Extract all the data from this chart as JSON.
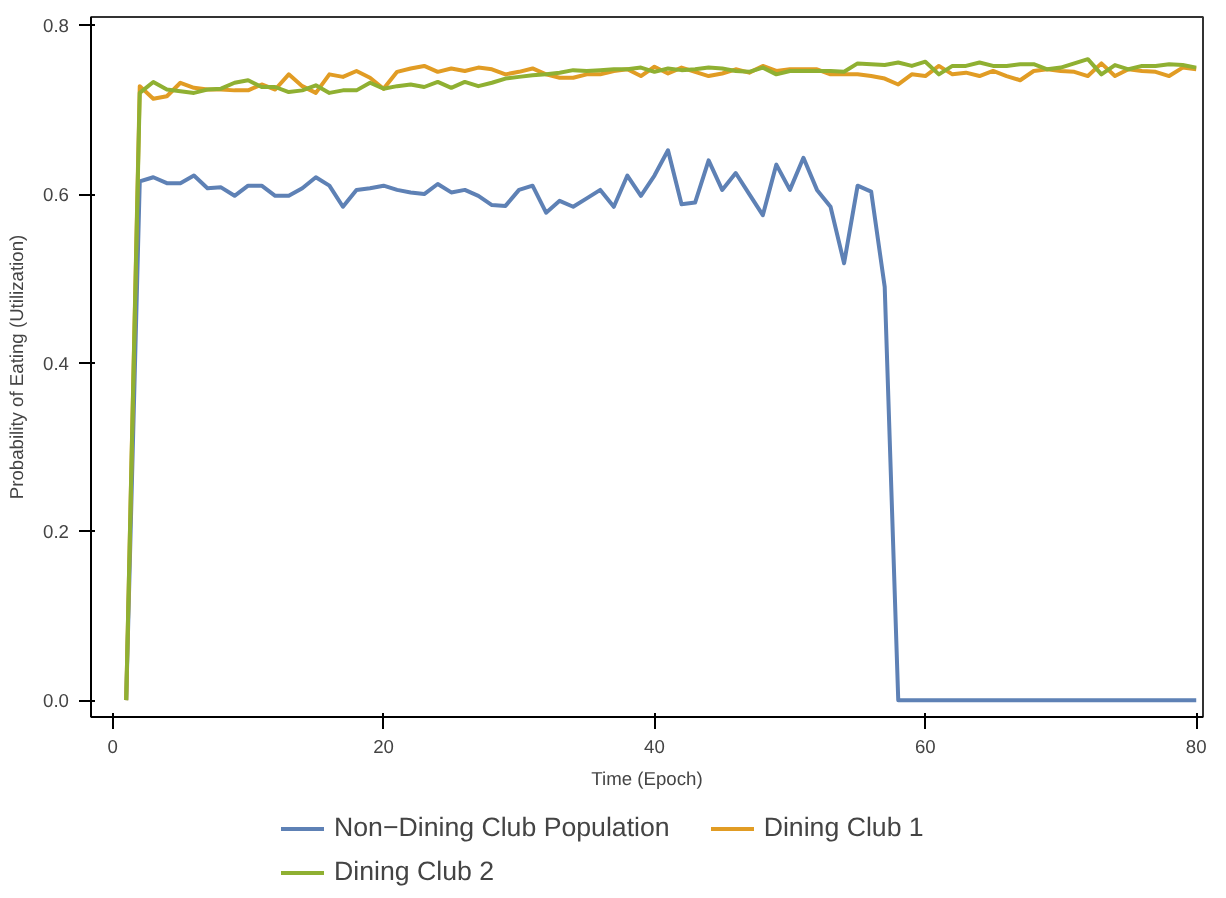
{
  "chart_data": {
    "type": "line",
    "xlabel": "Time (Epoch)",
    "ylabel": "Probability of Eating (Utilization)",
    "x": [
      1,
      2,
      3,
      4,
      5,
      6,
      7,
      8,
      9,
      10,
      11,
      12,
      13,
      14,
      15,
      16,
      17,
      18,
      19,
      20,
      21,
      22,
      23,
      24,
      25,
      26,
      27,
      28,
      29,
      30,
      31,
      32,
      33,
      34,
      35,
      36,
      37,
      38,
      39,
      40,
      41,
      42,
      43,
      44,
      45,
      46,
      47,
      48,
      49,
      50,
      51,
      52,
      53,
      54,
      55,
      56,
      57,
      58,
      59,
      60,
      61,
      62,
      63,
      64,
      65,
      66,
      67,
      68,
      69,
      70,
      71,
      72,
      73,
      74,
      75,
      76,
      77,
      78,
      79,
      80
    ],
    "xlim": [
      -1.6,
      80.5
    ],
    "xticks": [
      0,
      20,
      40,
      60,
      80
    ],
    "ylim": [
      -0.02,
      0.81
    ],
    "yticks": [
      {
        "value": 0,
        "label": "0.0"
      },
      {
        "value": 0.2,
        "label": "0.2"
      },
      {
        "value": 0.4,
        "label": "0.4"
      },
      {
        "value": 0.6,
        "label": "0.6"
      },
      {
        "value": 0.8,
        "label": "0.8"
      }
    ],
    "grid": false,
    "legend": "bottom",
    "line_style": "solid",
    "marker": "none",
    "series": [
      {
        "name": "Non−Dining Club Population",
        "color": "#5e81b5",
        "values": [
          0,
          0.615,
          0.62,
          0.613,
          0.613,
          0.622,
          0.607,
          0.608,
          0.598,
          0.61,
          0.61,
          0.598,
          0.598,
          0.607,
          0.62,
          0.61,
          0.585,
          0.605,
          0.607,
          0.61,
          0.605,
          0.602,
          0.6,
          0.612,
          0.602,
          0.605,
          0.598,
          0.587,
          0.586,
          0.605,
          0.61,
          0.578,
          0.592,
          0.585,
          0.595,
          0.605,
          0.585,
          0.622,
          0.598,
          0.622,
          0.652,
          0.588,
          0.59,
          0.64,
          0.605,
          0.625,
          0.6,
          0.575,
          0.635,
          0.605,
          0.643,
          0.605,
          0.585,
          0.518,
          0.61,
          0.603,
          0.49,
          0,
          0,
          0,
          0,
          0,
          0,
          0,
          0,
          0,
          0,
          0,
          0,
          0,
          0,
          0,
          0,
          0,
          0,
          0,
          0,
          0,
          0,
          0
        ]
      },
      {
        "name": "Dining Club 1",
        "color": "#e19c24",
        "values": [
          0,
          0.728,
          0.713,
          0.716,
          0.732,
          0.726,
          0.724,
          0.724,
          0.723,
          0.723,
          0.73,
          0.724,
          0.742,
          0.728,
          0.72,
          0.742,
          0.739,
          0.746,
          0.738,
          0.725,
          0.745,
          0.749,
          0.752,
          0.745,
          0.749,
          0.746,
          0.75,
          0.748,
          0.742,
          0.745,
          0.749,
          0.742,
          0.738,
          0.738,
          0.742,
          0.742,
          0.746,
          0.748,
          0.74,
          0.751,
          0.743,
          0.75,
          0.745,
          0.74,
          0.743,
          0.748,
          0.744,
          0.752,
          0.746,
          0.748,
          0.748,
          0.748,
          0.742,
          0.742,
          0.742,
          0.74,
          0.737,
          0.73,
          0.742,
          0.74,
          0.752,
          0.742,
          0.744,
          0.74,
          0.746,
          0.74,
          0.735,
          0.746,
          0.748,
          0.746,
          0.745,
          0.74,
          0.755,
          0.74,
          0.748,
          0.746,
          0.745,
          0.74,
          0.75,
          0.748
        ]
      },
      {
        "name": "Dining Club 2",
        "color": "#8fb032",
        "values": [
          0,
          0.72,
          0.733,
          0.724,
          0.722,
          0.72,
          0.724,
          0.725,
          0.732,
          0.735,
          0.727,
          0.727,
          0.721,
          0.723,
          0.729,
          0.72,
          0.723,
          0.723,
          0.732,
          0.725,
          0.728,
          0.73,
          0.727,
          0.733,
          0.726,
          0.733,
          0.728,
          0.732,
          0.737,
          0.739,
          0.741,
          0.742,
          0.744,
          0.747,
          0.746,
          0.747,
          0.748,
          0.748,
          0.75,
          0.745,
          0.749,
          0.747,
          0.748,
          0.75,
          0.749,
          0.746,
          0.745,
          0.75,
          0.742,
          0.746,
          0.746,
          0.746,
          0.746,
          0.745,
          0.755,
          0.754,
          0.753,
          0.756,
          0.752,
          0.757,
          0.742,
          0.752,
          0.752,
          0.756,
          0.752,
          0.752,
          0.754,
          0.754,
          0.748,
          0.75,
          0.755,
          0.76,
          0.742,
          0.753,
          0.748,
          0.752,
          0.752,
          0.754,
          0.753,
          0.75
        ]
      }
    ]
  }
}
